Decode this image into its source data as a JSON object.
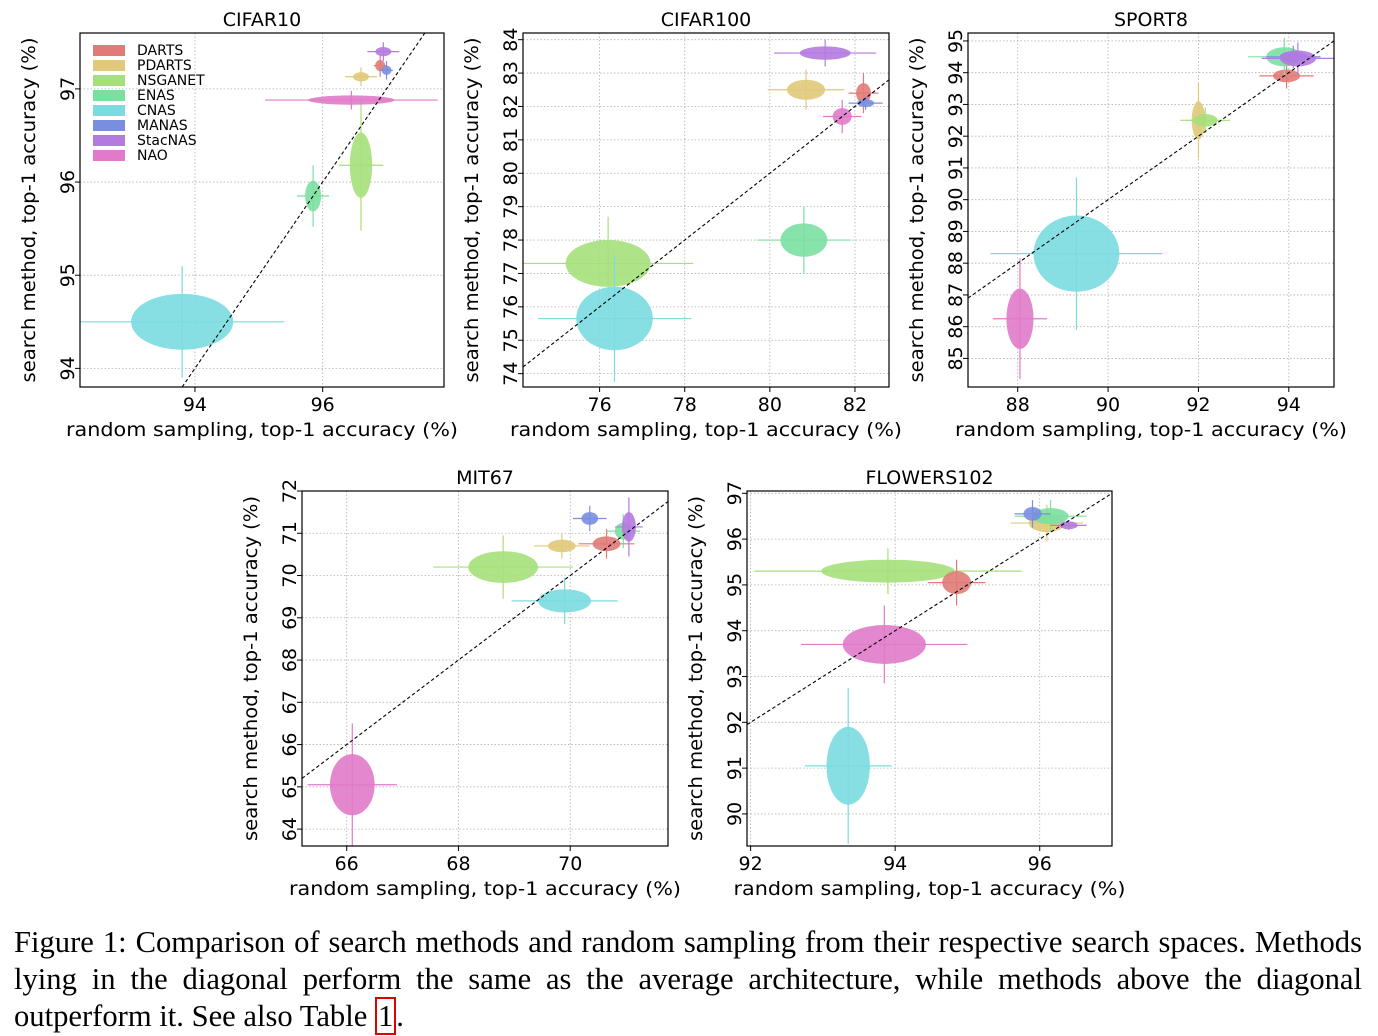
{
  "methods": [
    {
      "name": "DARTS",
      "color": "#e07b78"
    },
    {
      "name": "PDARTS",
      "color": "#e0c97a"
    },
    {
      "name": "NSGANET",
      "color": "#a6e07a"
    },
    {
      "name": "ENAS",
      "color": "#7ae0a0"
    },
    {
      "name": "CNAS",
      "color": "#7adbe0"
    },
    {
      "name": "MANAS",
      "color": "#7a8ee0"
    },
    {
      "name": "StacNAS",
      "color": "#b47ae0"
    },
    {
      "name": "NAO",
      "color": "#e07ac9"
    }
  ],
  "chart_data": [
    {
      "type": "scatter",
      "title": "CIFAR10",
      "xlabel": "random sampling, top-1 accuracy (%)",
      "ylabel": "search method, top-1 accuracy (%)",
      "xlim": [
        92.2,
        97.9
      ],
      "ylim": [
        93.8,
        97.6
      ],
      "xticks": [
        94,
        96
      ],
      "yticks": [
        94,
        95,
        96,
        97
      ],
      "grid": true,
      "legend": "top-left",
      "diagonal": true,
      "points": [
        {
          "method": "CNAS",
          "x": 93.8,
          "y": 94.5,
          "xerr": 1.6,
          "yerr": 0.6
        },
        {
          "method": "ENAS",
          "x": 95.85,
          "y": 95.85,
          "xerr": 0.25,
          "yerr": 0.33
        },
        {
          "method": "NSGANET",
          "x": 96.6,
          "y": 96.18,
          "xerr": 0.35,
          "yerr": 0.7
        },
        {
          "method": "NAO",
          "x": 96.45,
          "y": 96.88,
          "xerr": 1.35,
          "yerr": 0.1
        },
        {
          "method": "PDARTS",
          "x": 96.6,
          "y": 97.13,
          "xerr": 0.25,
          "yerr": 0.1
        },
        {
          "method": "DARTS",
          "x": 96.9,
          "y": 97.25,
          "xerr": 0.1,
          "yerr": 0.12
        },
        {
          "method": "MANAS",
          "x": 97.0,
          "y": 97.2,
          "xerr": 0.1,
          "yerr": 0.1
        },
        {
          "method": "StacNAS",
          "x": 96.95,
          "y": 97.4,
          "xerr": 0.25,
          "yerr": 0.1
        }
      ]
    },
    {
      "type": "scatter",
      "title": "CIFAR100",
      "xlabel": "random sampling, top-1 accuracy (%)",
      "ylabel": "search method, top-1 accuracy (%)",
      "xlim": [
        74.2,
        82.8
      ],
      "ylim": [
        73.6,
        84.2
      ],
      "xticks": [
        76,
        78,
        80,
        82
      ],
      "yticks": [
        74,
        75,
        76,
        77,
        78,
        79,
        80,
        81,
        82,
        83,
        84
      ],
      "grid": true,
      "diagonal": true,
      "points": [
        {
          "method": "NSGANET",
          "x": 76.2,
          "y": 77.3,
          "xerr": 2.0,
          "yerr": 1.4
        },
        {
          "method": "CNAS",
          "x": 76.35,
          "y": 75.65,
          "xerr": 1.8,
          "yerr": 1.9
        },
        {
          "method": "ENAS",
          "x": 80.8,
          "y": 78.0,
          "xerr": 1.1,
          "yerr": 1.0
        },
        {
          "method": "PDARTS",
          "x": 80.85,
          "y": 82.5,
          "xerr": 0.9,
          "yerr": 0.6
        },
        {
          "method": "StacNAS",
          "x": 81.3,
          "y": 83.6,
          "xerr": 1.2,
          "yerr": 0.4
        },
        {
          "method": "NAO",
          "x": 81.7,
          "y": 81.7,
          "xerr": 0.45,
          "yerr": 0.5
        },
        {
          "method": "DARTS",
          "x": 82.2,
          "y": 82.4,
          "xerr": 0.35,
          "yerr": 0.6
        },
        {
          "method": "MANAS",
          "x": 82.25,
          "y": 82.1,
          "xerr": 0.4,
          "yerr": 0.2
        }
      ]
    },
    {
      "type": "scatter",
      "title": "SPORT8",
      "xlabel": "random sampling, top-1 accuracy (%)",
      "ylabel": "search method, top-1 accuracy (%)",
      "xlim": [
        86.9,
        95.0
      ],
      "ylim": [
        84.1,
        95.25
      ],
      "xticks": [
        88,
        90,
        92,
        94
      ],
      "yticks": [
        85,
        86,
        87,
        88,
        89,
        90,
        91,
        92,
        93,
        94,
        95
      ],
      "grid": true,
      "diagonal": true,
      "points": [
        {
          "method": "NAO",
          "x": 88.05,
          "y": 86.25,
          "xerr": 0.6,
          "yerr": 1.9
        },
        {
          "method": "CNAS",
          "x": 89.3,
          "y": 88.3,
          "xerr": 1.9,
          "yerr": 2.4
        },
        {
          "method": "PDARTS",
          "x": 92.0,
          "y": 92.5,
          "xerr": 0.3,
          "yerr": 1.2
        },
        {
          "method": "NSGANET",
          "x": 92.15,
          "y": 92.5,
          "xerr": 0.55,
          "yerr": 0.4
        },
        {
          "method": "DARTS",
          "x": 93.95,
          "y": 93.9,
          "xerr": 0.6,
          "yerr": 0.4
        },
        {
          "method": "ENAS",
          "x": 93.9,
          "y": 94.5,
          "xerr": 0.8,
          "yerr": 0.6
        },
        {
          "method": "MANAS",
          "x": 94.1,
          "y": 94.5,
          "xerr": 0.6,
          "yerr": 0.35
        },
        {
          "method": "StacNAS",
          "x": 94.2,
          "y": 94.45,
          "xerr": 0.8,
          "yerr": 0.5
        }
      ]
    },
    {
      "type": "scatter",
      "title": "MIT67",
      "xlabel": "random sampling, top-1 accuracy (%)",
      "ylabel": "search method, top-1 accuracy (%)",
      "xlim": [
        65.2,
        71.75
      ],
      "ylim": [
        63.6,
        72.0
      ],
      "xticks": [
        66,
        68,
        70
      ],
      "yticks": [
        64,
        65,
        66,
        67,
        68,
        69,
        70,
        71,
        72
      ],
      "grid": true,
      "diagonal": true,
      "points": [
        {
          "method": "NAO",
          "x": 66.1,
          "y": 65.05,
          "xerr": 0.8,
          "yerr": 1.45
        },
        {
          "method": "NSGANET",
          "x": 68.8,
          "y": 70.2,
          "xerr": 1.25,
          "yerr": 0.75
        },
        {
          "method": "CNAS",
          "x": 69.9,
          "y": 69.4,
          "xerr": 0.95,
          "yerr": 0.55
        },
        {
          "method": "PDARTS",
          "x": 69.85,
          "y": 70.7,
          "xerr": 0.5,
          "yerr": 0.3
        },
        {
          "method": "DARTS",
          "x": 70.65,
          "y": 70.75,
          "xerr": 0.5,
          "yerr": 0.35
        },
        {
          "method": "MANAS",
          "x": 70.35,
          "y": 71.35,
          "xerr": 0.3,
          "yerr": 0.3
        },
        {
          "method": "ENAS",
          "x": 70.95,
          "y": 71.05,
          "xerr": 0.3,
          "yerr": 0.4
        },
        {
          "method": "StacNAS",
          "x": 71.05,
          "y": 71.15,
          "xerr": 0.25,
          "yerr": 0.7
        }
      ]
    },
    {
      "type": "scatter",
      "title": "FLOWERS102",
      "xlabel": "random sampling, top-1 accuracy (%)",
      "ylabel": "search method, top-1 accuracy (%)",
      "xlim": [
        91.95,
        97.0
      ],
      "ylim": [
        89.3,
        97.05
      ],
      "xticks": [
        92,
        94,
        96
      ],
      "yticks": [
        90,
        91,
        92,
        93,
        94,
        95,
        96,
        97
      ],
      "grid": true,
      "diagonal": true,
      "points": [
        {
          "method": "CNAS",
          "x": 93.35,
          "y": 91.05,
          "xerr": 0.6,
          "yerr": 1.7
        },
        {
          "method": "NAO",
          "x": 93.85,
          "y": 93.7,
          "xerr": 1.15,
          "yerr": 0.85
        },
        {
          "method": "NSGANET",
          "x": 93.9,
          "y": 95.3,
          "xerr": 1.85,
          "yerr": 0.5
        },
        {
          "method": "DARTS",
          "x": 94.85,
          "y": 95.05,
          "xerr": 0.4,
          "yerr": 0.5
        },
        {
          "method": "PDARTS",
          "x": 96.1,
          "y": 96.35,
          "xerr": 0.5,
          "yerr": 0.4
        },
        {
          "method": "ENAS",
          "x": 96.15,
          "y": 96.5,
          "xerr": 0.5,
          "yerr": 0.35
        },
        {
          "method": "MANAS",
          "x": 95.9,
          "y": 96.55,
          "xerr": 0.25,
          "yerr": 0.3
        },
        {
          "method": "StacNAS",
          "x": 96.4,
          "y": 96.3,
          "xerr": 0.25,
          "yerr": 0.1
        }
      ]
    }
  ],
  "caption": {
    "prefix": "Figure 1: Comparison of search methods and random sampling from their respective search spaces. Methods lying in the diagonal perform the same as the average architecture, while methods above the diagonal outperform it. See also Table ",
    "ref": "1",
    "suffix": "."
  }
}
